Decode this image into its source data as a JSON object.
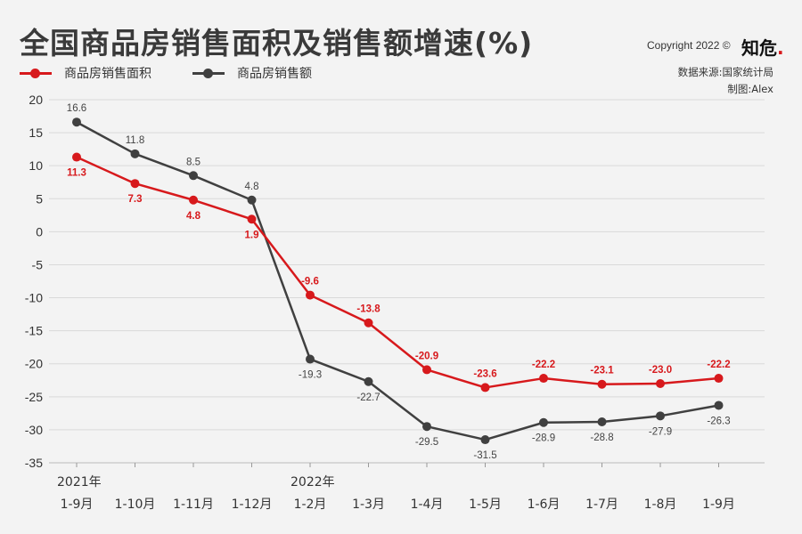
{
  "header": {
    "title": "全国商品房销售面积及销售额增速(%)",
    "copyright": "Copyright 2022 ©",
    "logo_text": "知危",
    "logo_dot": "."
  },
  "source": {
    "line1": "数据来源:国家统计局",
    "line2": "制图:Alex"
  },
  "legend": [
    {
      "label": "商品房销售面积",
      "color": "#d7191c"
    },
    {
      "label": "商品房销售额",
      "color": "#404040"
    }
  ],
  "chart_data": {
    "type": "line",
    "categories": [
      "1-9月",
      "1-10月",
      "1-11月",
      "1-12月",
      "1-2月",
      "1-3月",
      "1-4月",
      "1-5月",
      "1-6月",
      "1-7月",
      "1-8月",
      "1-9月"
    ],
    "year_labels": [
      {
        "index": 0,
        "label": "2021年"
      },
      {
        "index": 4,
        "label": "2022年"
      }
    ],
    "ylim": [
      -35,
      20
    ],
    "yticks": [
      20,
      15,
      10,
      5,
      0,
      -5,
      -10,
      -15,
      -20,
      -25,
      -30,
      -35
    ],
    "grid": true,
    "legend_position": "top-left",
    "series": [
      {
        "name": "商品房销售面积",
        "color": "#d7191c",
        "values": [
          11.3,
          7.3,
          4.8,
          1.9,
          -9.6,
          -13.8,
          -20.9,
          -23.6,
          -22.2,
          -23.1,
          -23.0,
          -22.2
        ],
        "labels": [
          "11.3",
          "7.3",
          "4.8",
          "1.9",
          "-9.6",
          "-13.8",
          "-20.9",
          "-23.6",
          "-22.2",
          "-23.1",
          "-23.0",
          "-22.2"
        ]
      },
      {
        "name": "商品房销售额",
        "color": "#404040",
        "values": [
          16.6,
          11.8,
          8.5,
          4.8,
          -19.3,
          -22.7,
          -29.5,
          -31.5,
          -28.9,
          -28.8,
          -27.9,
          -26.3
        ],
        "labels": [
          "16.6",
          "11.8",
          "8.5",
          "4.8",
          "-19.3",
          "-22.7",
          "-29.5",
          "-31.5",
          "-28.9",
          "-28.8",
          "-27.9",
          "-26.3"
        ]
      }
    ]
  }
}
